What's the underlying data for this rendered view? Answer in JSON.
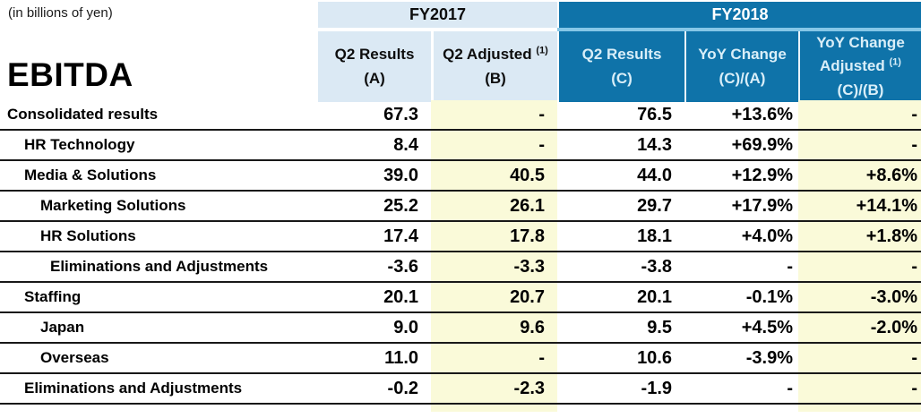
{
  "units_note": "(in billions of yen)",
  "title": "EBITDA",
  "header": {
    "fy2017_label": "FY2017",
    "fy2018_label": "FY2018",
    "a": {
      "l1": "Q2 Results",
      "l2": "(A)"
    },
    "b": {
      "l1": "Q2 Adjusted",
      "sup": "(1)",
      "l2": "(B)"
    },
    "c": {
      "l1": "Q2 Results",
      "l2": "(C)"
    },
    "ca": {
      "l1": "YoY Change",
      "l2": "(C)/(A)"
    },
    "cb": {
      "l1": "YoY Change",
      "l1b": "Adjusted",
      "sup": "(1)",
      "l2": "(C)/(B)"
    }
  },
  "colors": {
    "fy2017_header_bg": "#dbe9f4",
    "fy2018_header_bg": "#0f73a9",
    "fy2018_header_text": "#d9eef8",
    "adjusted_column_bg": "#fafad9",
    "fy2018_separator_line": "#86c7e7"
  },
  "chart_data": {
    "type": "table",
    "title": "EBITDA",
    "units_note": "(in billions of yen)",
    "column_groups": [
      {
        "label": "FY2017",
        "columns": [
          "Q2 Results (A)",
          "Q2 Adjusted (1) (B)"
        ]
      },
      {
        "label": "FY2018",
        "columns": [
          "Q2 Results (C)",
          "YoY Change (C)/(A)",
          "YoY Change Adjusted (1) (C)/(B)"
        ]
      }
    ],
    "rows": [
      {
        "label": "Consolidated results",
        "indent": 0,
        "a": "67.3",
        "b": "-",
        "c": "76.5",
        "ca": "+13.6%",
        "cb": "-"
      },
      {
        "label": "HR Technology",
        "indent": 1,
        "a": "8.4",
        "b": "-",
        "c": "14.3",
        "ca": "+69.9%",
        "cb": "-"
      },
      {
        "label": "Media & Solutions",
        "indent": 1,
        "a": "39.0",
        "b": "40.5",
        "c": "44.0",
        "ca": "+12.9%",
        "cb": "+8.6%"
      },
      {
        "label": "Marketing Solutions",
        "indent": 2,
        "a": "25.2",
        "b": "26.1",
        "c": "29.7",
        "ca": "+17.9%",
        "cb": "+14.1%"
      },
      {
        "label": "HR Solutions",
        "indent": 2,
        "a": "17.4",
        "b": "17.8",
        "c": "18.1",
        "ca": "+4.0%",
        "cb": "+1.8%"
      },
      {
        "label": "Eliminations and Adjustments",
        "indent": 3,
        "a": "-3.6",
        "b": "-3.3",
        "c": "-3.8",
        "ca": "-",
        "cb": "-"
      },
      {
        "label": "Staffing",
        "indent": 1,
        "a": "20.1",
        "b": "20.7",
        "c": "20.1",
        "ca": "-0.1%",
        "cb": "-3.0%"
      },
      {
        "label": "Japan",
        "indent": 2,
        "a": "9.0",
        "b": "9.6",
        "c": "9.5",
        "ca": "+4.5%",
        "cb": "-2.0%"
      },
      {
        "label": "Overseas",
        "indent": 2,
        "a": "11.0",
        "b": "-",
        "c": "10.6",
        "ca": "-3.9%",
        "cb": "-"
      },
      {
        "label": "Eliminations and Adjustments",
        "indent": 1,
        "a": "-0.2",
        "b": "-2.3",
        "c": "-1.9",
        "ca": "-",
        "cb": "-"
      }
    ]
  }
}
